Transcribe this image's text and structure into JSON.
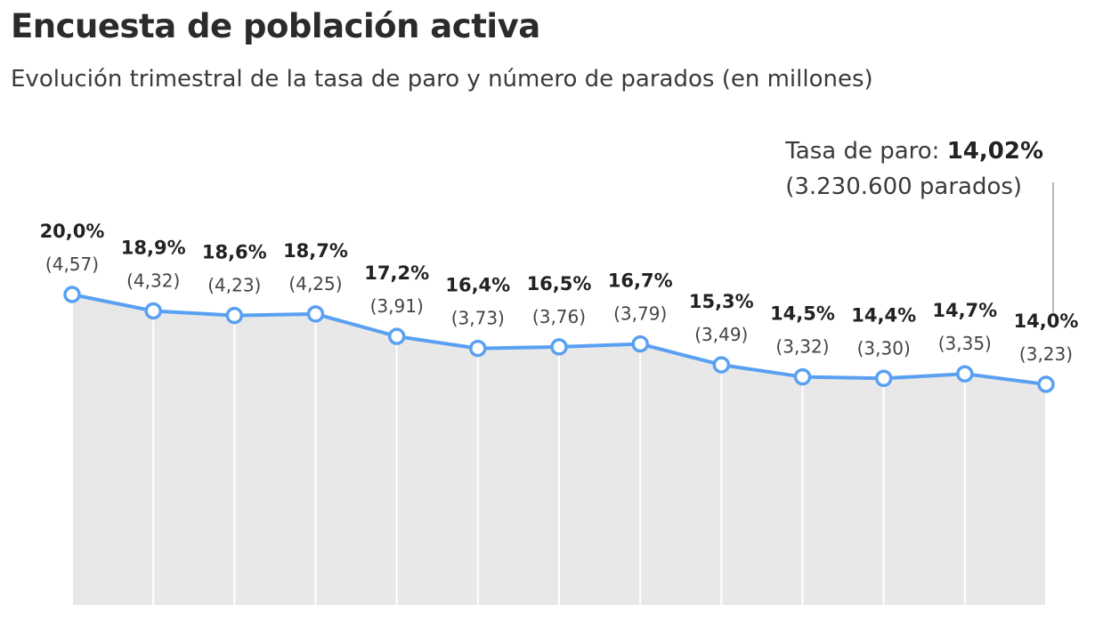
{
  "title": "Encuesta de población activa",
  "subtitle": "Evolución trimestral de la tasa de paro y número de parados (en millones)",
  "annotation": {
    "prefix": "Tasa de paro: ",
    "value": "14,02%",
    "detail": "(3.230.600 parados)"
  },
  "colors": {
    "line": "#5aa0f2",
    "area": "#e8e8e8",
    "gridline": "#ffffff",
    "marker_fill": "#ffffff",
    "annotation_line": "#b8b8b8"
  },
  "chart_data": {
    "type": "area",
    "title": "Encuesta de población activa",
    "subtitle": "Evolución trimestral de la tasa de paro y número de parados (en millones)",
    "xlabel": "",
    "ylabel": "",
    "grid": true,
    "series": [
      {
        "values": [
          20.0,
          18.9,
          18.6,
          18.7,
          17.2,
          16.4,
          16.5,
          16.7,
          15.3,
          14.5,
          14.4,
          14.7,
          14.0
        ],
        "labels": [
          "20,0%",
          "18,9%",
          "18,6%",
          "18,7%",
          "17,2%",
          "16,4%",
          "16,5%",
          "16,7%",
          "15,3%",
          "14,5%",
          "14,4%",
          "14,7%",
          "14,0%"
        ]
      }
    ],
    "parados_millones": [
      4.57,
      4.32,
      4.23,
      4.25,
      3.91,
      3.73,
      3.76,
      3.79,
      3.49,
      3.32,
      3.3,
      3.35,
      3.23
    ],
    "parados_labels": [
      "(4,57)",
      "(4,32)",
      "(4,23)",
      "(4,25)",
      "(3,91)",
      "(3,73)",
      "(3,76)",
      "(3,79)",
      "(3,49)",
      "(3,32)",
      "(3,30)",
      "(3,35)",
      "(3,23)"
    ]
  }
}
